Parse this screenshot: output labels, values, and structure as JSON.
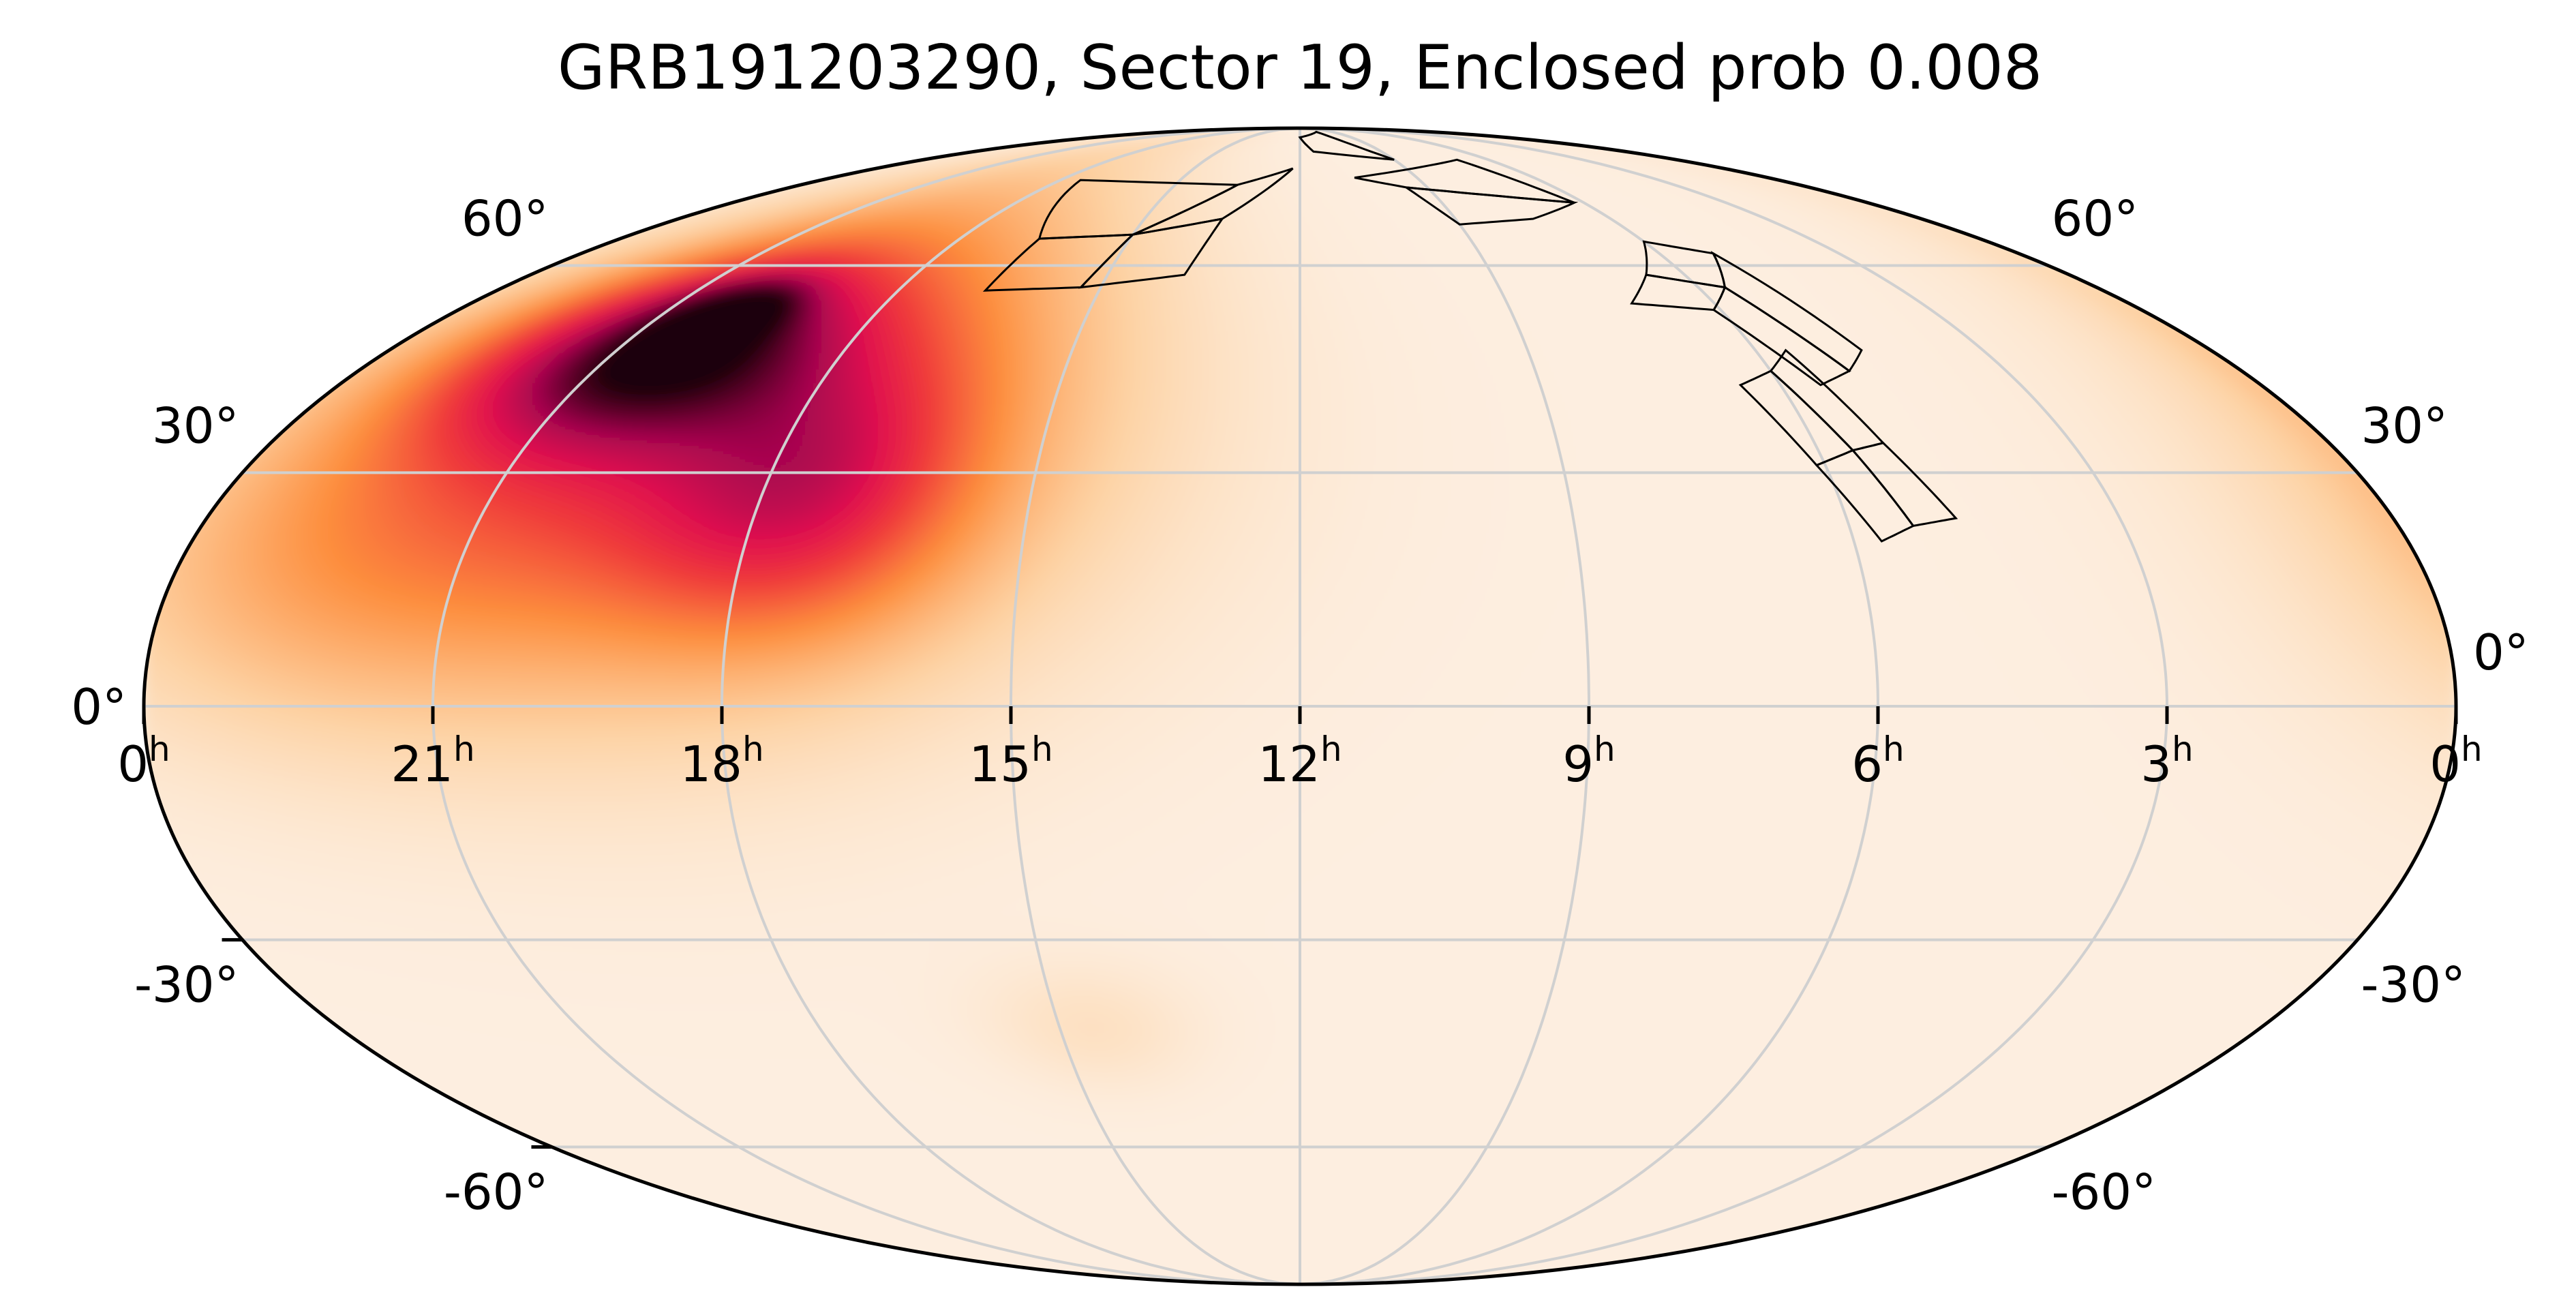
{
  "chart_data": {
    "type": "heatmap",
    "projection": "mollweide",
    "title": "GRB191203290, Sector 19, Enclosed prob 0.008",
    "ra_ticks": [
      {
        "label": "0",
        "sup": "h",
        "ra_h": 24
      },
      {
        "label": "21",
        "sup": "h",
        "ra_h": 21
      },
      {
        "label": "18",
        "sup": "h",
        "ra_h": 18
      },
      {
        "label": "15",
        "sup": "h",
        "ra_h": 15
      },
      {
        "label": "12",
        "sup": "h",
        "ra_h": 12
      },
      {
        "label": "9",
        "sup": "h",
        "ra_h": 9
      },
      {
        "label": "6",
        "sup": "h",
        "ra_h": 6
      },
      {
        "label": "3",
        "sup": "h",
        "ra_h": 3
      },
      {
        "label": "0",
        "sup": "h",
        "ra_h": 0
      }
    ],
    "dec_ticks": [
      {
        "label": "60°",
        "dec": 60
      },
      {
        "label": "30°",
        "dec": 30
      },
      {
        "label": "0°",
        "dec": 0
      },
      {
        "label": "-30°",
        "dec": -30
      },
      {
        "label": "-60°",
        "dec": -60
      }
    ],
    "ra_range_h": [
      0,
      24
    ],
    "dec_range_deg": [
      -90,
      90
    ],
    "grid": true,
    "colormap": [
      "#fdeee0",
      "#fdd3a5",
      "#fd8d3c",
      "#f03b3b",
      "#e0114f",
      "#a8064f",
      "#5a0028",
      "#1b0008"
    ],
    "probability_blobs": [
      {
        "ra_h": 19.1,
        "dec": 39,
        "sigma_h": 2.9,
        "sigma_dec": 24,
        "amp": 0.52
      },
      {
        "ra_h": 20.4,
        "dec": 47,
        "sigma_h": 1.5,
        "sigma_dec": 9,
        "amp": 0.6
      },
      {
        "ra_h": 17.5,
        "dec": 27,
        "sigma_h": 1.2,
        "sigma_dec": 12,
        "amp": 0.32
      },
      {
        "ra_h": 20.1,
        "dec": 53,
        "sigma_h": 0.6,
        "sigma_dec": 3.5,
        "amp": 0.35
      },
      {
        "ra_h": 22.4,
        "dec": 18,
        "sigma_h": 1.8,
        "sigma_dec": 15,
        "amp": 0.12
      },
      {
        "ra_h": 14.6,
        "dec": -42,
        "sigma_h": 0.9,
        "sigma_dec": 6,
        "amp": 0.06
      }
    ],
    "sector_footprints": [
      {
        "name": "camera-north",
        "ccds": [
          [
            [
              16.7,
              56
            ],
            [
              15.3,
              56.5
            ],
            [
              15.0,
              65.2
            ],
            [
              16.6,
              64.5
            ]
          ],
          [
            [
              15.3,
              56.5
            ],
            [
              13.8,
              58.5
            ],
            [
              13.5,
              68
            ],
            [
              15.0,
              65.2
            ]
          ],
          [
            [
              16.6,
              64.5
            ],
            [
              15.0,
              65.2
            ],
            [
              13.5,
              74.5
            ],
            [
              17.5,
              75.5
            ]
          ],
          [
            [
              15.0,
              65.2
            ],
            [
              13.5,
              68
            ],
            [
              12.2,
              78
            ],
            [
              13.5,
              74.5
            ]
          ]
        ]
      },
      {
        "name": "camera-south",
        "ccds": [
          [
            [
              7.2,
              54
            ],
            [
              6.6,
              58.5
            ],
            [
              5.6,
              56.5
            ],
            [
              6.1,
              53
            ]
          ],
          [
            [
              6.6,
              58.5
            ],
            [
              6.0,
              64
            ],
            [
              5.1,
              62
            ],
            [
              5.6,
              56.5
            ]
          ],
          [
            [
              6.1,
              53
            ],
            [
              5.6,
              56.5
            ],
            [
              5.0,
              44
            ],
            [
              5.5,
              42
            ]
          ],
          [
            [
              5.6,
              56.5
            ],
            [
              5.1,
              62
            ],
            [
              4.6,
              47
            ],
            [
              5.0,
              44
            ]
          ],
          [
            [
              6.5,
              42
            ],
            [
              6.0,
              44
            ],
            [
              5.6,
              33
            ],
            [
              6.1,
              31
            ]
          ],
          [
            [
              6.0,
              44
            ],
            [
              5.6,
              47
            ],
            [
              5.2,
              34
            ],
            [
              5.6,
              33
            ]
          ],
          [
            [
              6.1,
              31
            ],
            [
              5.6,
              33
            ],
            [
              5.3,
              23
            ],
            [
              5.7,
              21
            ]
          ],
          [
            [
              5.6,
              33
            ],
            [
              5.2,
              34
            ],
            [
              4.8,
              24
            ],
            [
              5.3,
              23
            ]
          ]
        ]
      },
      {
        "name": "camera-pole",
        "ccds": [
          [
            [
              9.0,
              67
            ],
            [
              7.5,
              68
            ],
            [
              6.2,
              71
            ],
            [
              9.5,
              74
            ]
          ],
          [
            [
              10.6,
              76
            ],
            [
              9.5,
              74
            ],
            [
              6.2,
              71
            ],
            [
              7.0,
              80
            ]
          ],
          [
            [
              12.0,
              86
            ],
            [
              11.5,
              82
            ],
            [
              9.0,
              80
            ],
            [
              10.5,
              88
            ]
          ]
        ]
      }
    ]
  }
}
